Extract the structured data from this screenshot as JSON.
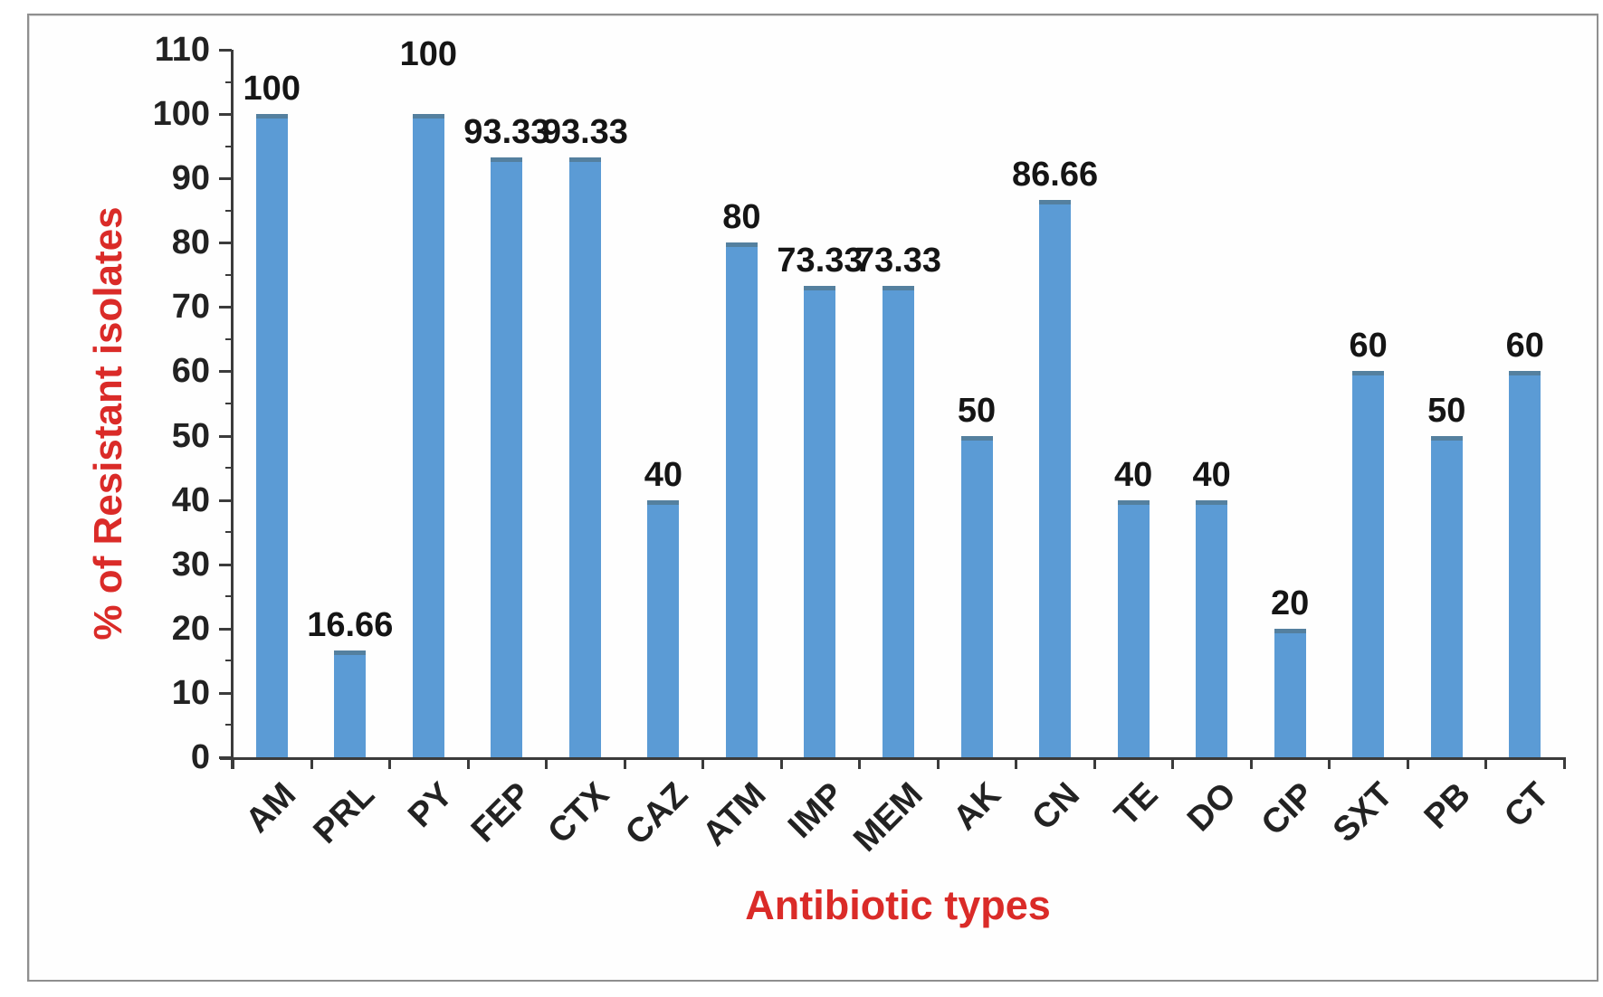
{
  "chart_data": {
    "type": "bar",
    "title": "",
    "x_title": "Antibiotic types",
    "y_title": "% of Resistant isolates",
    "categories": [
      "AM",
      "PRL",
      "PY",
      "FEP",
      "CTX",
      "CAZ",
      "ATM",
      "IMP",
      "MEM",
      "AK",
      "CN",
      "TE",
      "DO",
      "CIP",
      "SXT",
      "PB",
      "CT"
    ],
    "values": [
      100,
      16.66,
      100,
      93.33,
      93.33,
      40,
      80,
      73.33,
      73.33,
      50,
      86.66,
      40,
      40,
      20,
      60,
      50,
      60
    ],
    "value_labels": [
      "100",
      "16.66",
      "100",
      "93.33",
      "93.33",
      "40",
      "80",
      "73.33",
      "73.33",
      "50",
      "86.66",
      "40",
      "40",
      "20",
      "60",
      "50",
      "60"
    ],
    "y_ticks": [
      0,
      10,
      20,
      30,
      40,
      50,
      60,
      70,
      80,
      90,
      100,
      110
    ],
    "ylim": [
      0,
      110
    ],
    "grid": false,
    "legend": false,
    "colors": {
      "bar": "#5b9bd5",
      "bar_cap": "#54809f",
      "axis": "#3b3b3b",
      "tick_text": "#222222",
      "axis_title": "#da2b28"
    }
  }
}
